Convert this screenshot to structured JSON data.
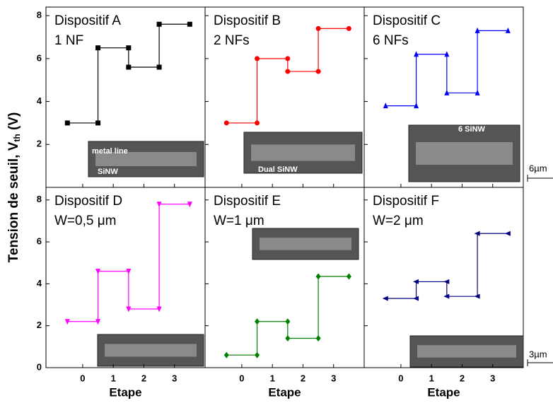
{
  "figure": {
    "ylabel": "Tension de seuil, V",
    "ylabel_sub": "th",
    "ylabel_unit": " (V)",
    "scale_bars": [
      "6µm",
      "3µm"
    ]
  },
  "chart_data": [
    {
      "type": "step",
      "label": [
        "Dispositif A",
        "1 NF"
      ],
      "x": [
        0,
        1,
        2,
        3
      ],
      "values": [
        3.0,
        6.5,
        5.6,
        7.6
      ],
      "color": "#000000",
      "marker": "square",
      "xlim": [
        -1.2,
        4.0
      ],
      "ylim": [
        0,
        8.4
      ],
      "xticks": [
        0,
        1,
        2,
        3
      ],
      "yticks": [
        2,
        4,
        6,
        8
      ],
      "xticklabels": false,
      "yticklabels": true,
      "annotations": [
        "metal line",
        "SiNW"
      ]
    },
    {
      "type": "step",
      "label": [
        "Dispositif B",
        "2 NFs"
      ],
      "x": [
        0,
        1,
        2,
        3
      ],
      "values": [
        3.0,
        6.0,
        5.4,
        7.4
      ],
      "color": "#ff0000",
      "marker": "circle",
      "xlim": [
        -1.2,
        4.0
      ],
      "ylim": [
        0,
        8.4
      ],
      "xticks": [
        0,
        1,
        2,
        3
      ],
      "yticks": [
        2,
        4,
        6,
        8
      ],
      "xticklabels": false,
      "yticklabels": false,
      "annotations": [
        "Dual SiNW"
      ]
    },
    {
      "type": "step",
      "label": [
        "Dispositif C",
        "6 NFs"
      ],
      "x": [
        0,
        1,
        2,
        3
      ],
      "values": [
        3.8,
        6.2,
        4.4,
        7.3
      ],
      "color": "#0000ff",
      "marker": "triangle-up",
      "xlim": [
        -1.2,
        4.0
      ],
      "ylim": [
        0,
        8.4
      ],
      "xticks": [
        0,
        1,
        2,
        3
      ],
      "yticks": [
        2,
        4,
        6,
        8
      ],
      "xticklabels": false,
      "yticklabels": false,
      "annotations": [
        "6 SiNW"
      ]
    },
    {
      "type": "step",
      "label": [
        "Dispositif D",
        "W=0,5 μm"
      ],
      "x": [
        0,
        1,
        2,
        3
      ],
      "values": [
        2.2,
        4.6,
        2.8,
        7.8
      ],
      "color": "#ff00ff",
      "marker": "triangle-down",
      "xlim": [
        -1.2,
        4.0
      ],
      "ylim": [
        0,
        8.6
      ],
      "xticks": [
        0,
        1,
        2,
        3
      ],
      "yticks": [
        0,
        2,
        4,
        6,
        8
      ],
      "xticklabels": true,
      "yticklabels": true,
      "xlabel": "Etape"
    },
    {
      "type": "step",
      "label": [
        "Dispositif E",
        "W=1 μm"
      ],
      "x": [
        0,
        1,
        2,
        3
      ],
      "values": [
        0.6,
        2.2,
        1.4,
        4.35
      ],
      "color": "#008000",
      "marker": "diamond",
      "xlim": [
        -1.2,
        4.0
      ],
      "ylim": [
        0,
        8.6
      ],
      "xticks": [
        0,
        1,
        2,
        3
      ],
      "yticks": [
        0,
        2,
        4,
        6,
        8
      ],
      "xticklabels": true,
      "yticklabels": false,
      "xlabel": "Etape"
    },
    {
      "type": "step",
      "label": [
        "Dispositif F",
        "W=2 μm"
      ],
      "x": [
        0,
        1,
        2,
        3
      ],
      "values": [
        3.3,
        4.1,
        3.4,
        6.4
      ],
      "color": "#000080",
      "marker": "triangle-left",
      "xlim": [
        -1.2,
        4.0
      ],
      "ylim": [
        0,
        8.6
      ],
      "xticks": [
        0,
        1,
        2,
        3
      ],
      "yticks": [
        0,
        2,
        4,
        6,
        8
      ],
      "xticklabels": true,
      "yticklabels": false,
      "xlabel": "Etape"
    }
  ]
}
